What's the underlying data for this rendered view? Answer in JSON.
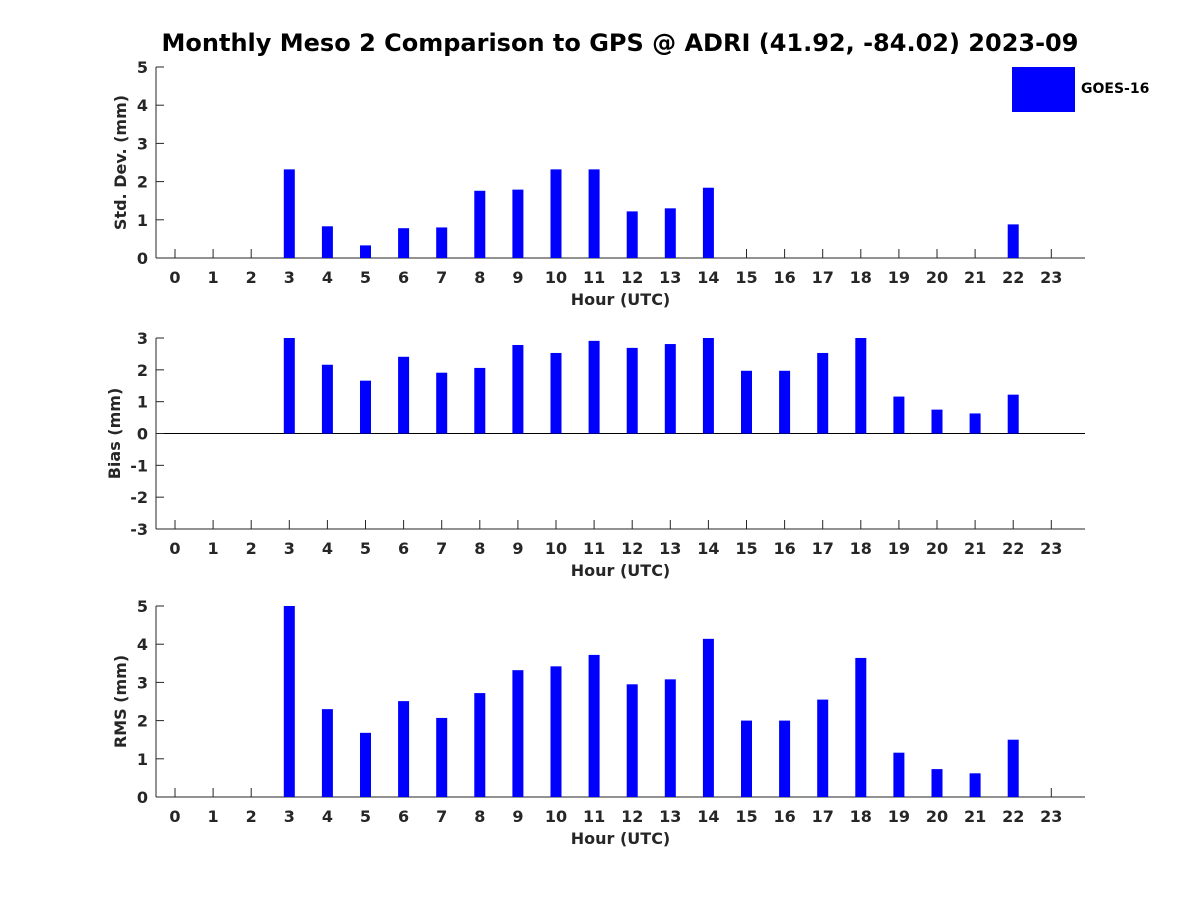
{
  "page": {
    "title": "Monthly Meso 2 Comparison to GPS @ ADRI (41.92, -84.02) 2023-09"
  },
  "legend": {
    "label": "GOES-16",
    "color": "#0000FF"
  },
  "colors": {
    "bar": "#0000FF",
    "axis": "#262626"
  },
  "chart_data": [
    {
      "type": "bar",
      "ylabel": "Std. Dev. (mm)",
      "xlabel": "Hour (UTC)",
      "ylim": [
        0,
        5
      ],
      "yticks": [
        "0",
        "1",
        "2",
        "3",
        "4",
        "5"
      ],
      "categories": [
        "0",
        "1",
        "2",
        "3",
        "4",
        "5",
        "6",
        "7",
        "8",
        "9",
        "10",
        "11",
        "12",
        "13",
        "14",
        "15",
        "16",
        "17",
        "18",
        "19",
        "20",
        "21",
        "22",
        "23"
      ],
      "series": [
        {
          "name": "GOES-16",
          "values": [
            null,
            null,
            null,
            2.32,
            0.83,
            0.33,
            0.78,
            0.8,
            1.76,
            1.79,
            2.32,
            2.32,
            1.22,
            1.3,
            1.84,
            null,
            null,
            null,
            null,
            null,
            null,
            null,
            0.88,
            null
          ]
        }
      ]
    },
    {
      "type": "bar",
      "ylabel": "Bias (mm)",
      "xlabel": "Hour (UTC)",
      "ylim": [
        -3,
        3
      ],
      "yticks": [
        "-3",
        "-2",
        "-1",
        "0",
        "1",
        "2",
        "3"
      ],
      "categories": [
        "0",
        "1",
        "2",
        "3",
        "4",
        "5",
        "6",
        "7",
        "8",
        "9",
        "10",
        "11",
        "12",
        "13",
        "14",
        "15",
        "16",
        "17",
        "18",
        "19",
        "20",
        "21",
        "22",
        "23"
      ],
      "series": [
        {
          "name": "GOES-16",
          "values": [
            null,
            null,
            null,
            3.0,
            2.16,
            1.66,
            2.41,
            1.91,
            2.06,
            2.78,
            2.53,
            2.91,
            2.69,
            2.81,
            3.0,
            1.97,
            1.97,
            2.53,
            3.0,
            1.16,
            0.75,
            0.63,
            1.22,
            null
          ]
        }
      ]
    },
    {
      "type": "bar",
      "ylabel": "RMS (mm)",
      "xlabel": "Hour (UTC)",
      "ylim": [
        0,
        5
      ],
      "yticks": [
        "0",
        "1",
        "2",
        "3",
        "4",
        "5"
      ],
      "categories": [
        "0",
        "1",
        "2",
        "3",
        "4",
        "5",
        "6",
        "7",
        "8",
        "9",
        "10",
        "11",
        "12",
        "13",
        "14",
        "15",
        "16",
        "17",
        "18",
        "19",
        "20",
        "21",
        "22",
        "23"
      ],
      "series": [
        {
          "name": "GOES-16",
          "values": [
            null,
            null,
            null,
            5.0,
            2.3,
            1.68,
            2.51,
            2.07,
            2.72,
            3.32,
            3.42,
            3.72,
            2.95,
            3.08,
            4.14,
            2.0,
            2.0,
            2.55,
            3.64,
            1.16,
            0.73,
            0.62,
            1.5,
            null
          ]
        }
      ]
    }
  ]
}
